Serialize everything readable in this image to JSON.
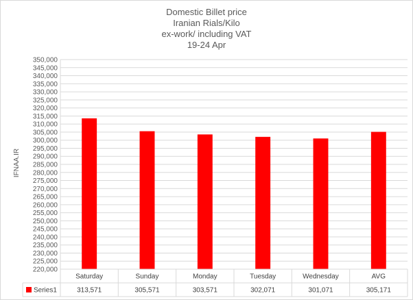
{
  "chart_data": {
    "type": "bar",
    "title": [
      "Domestic Billet price",
      "Iranian  Rials/Kilo",
      "ex-work/ including VAT",
      "19-24  Apr"
    ],
    "ylabel": "IFNAA.IR",
    "xlabel": "",
    "categories": [
      "Saturday",
      "Sunday",
      "Monday",
      "Tuesday",
      "Wednesday",
      "AVG"
    ],
    "series": [
      {
        "name": "Series1",
        "values": [
          313571,
          305571,
          303571,
          302071,
          301071,
          305171
        ],
        "labels": [
          "313,571",
          "305,571",
          "303,571",
          "302,071",
          "301,071",
          "305,171"
        ],
        "color": "#ff0000"
      }
    ],
    "ylim": [
      220000,
      350000
    ],
    "ytick_step": 5000,
    "yticks": [
      "220,000",
      "225,000",
      "230,000",
      "235,000",
      "240,000",
      "245,000",
      "250,000",
      "255,000",
      "260,000",
      "265,000",
      "270,000",
      "275,000",
      "280,000",
      "285,000",
      "290,000",
      "295,000",
      "300,000",
      "305,000",
      "310,000",
      "315,000",
      "320,000",
      "325,000",
      "330,000",
      "335,000",
      "340,000",
      "345,000",
      "350,000"
    ],
    "grid": true,
    "data_table": true,
    "gridline_color": "#d9d9d9"
  }
}
